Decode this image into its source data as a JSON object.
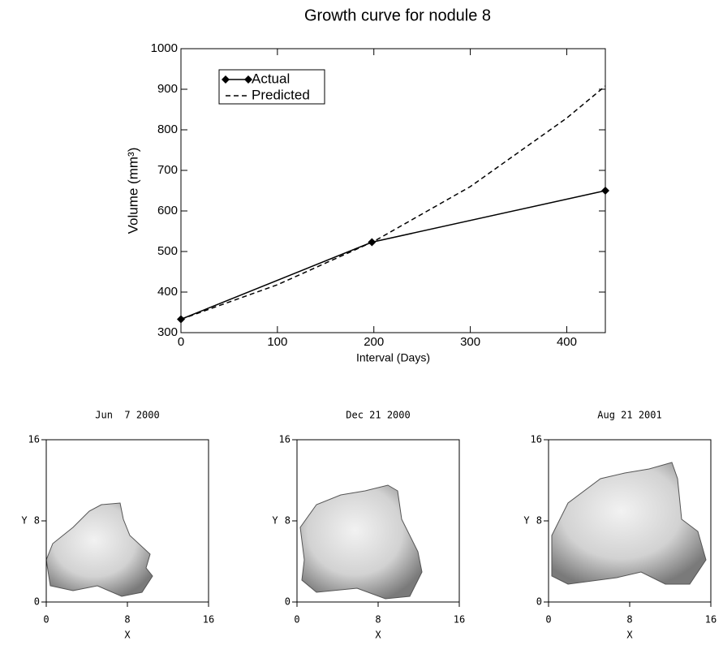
{
  "chart_data": [
    {
      "type": "line",
      "title": "Growth curve for nodule 8",
      "x_label": "Interval (Days)",
      "y_label": "Volume (mm³)",
      "xlim": [
        0,
        440
      ],
      "ylim": [
        300,
        1000
      ],
      "xticks": [
        0,
        100,
        200,
        300,
        400
      ],
      "yticks": [
        300,
        400,
        500,
        600,
        700,
        800,
        900,
        1000
      ],
      "legend": "upper left",
      "series": [
        {
          "name": "Actual",
          "color": "#000000",
          "line_style": "solid",
          "marker": "diamond",
          "x": [
            0,
            198,
            440
          ],
          "values": [
            333,
            523,
            650
          ]
        },
        {
          "name": "Predicted",
          "color": "#000000",
          "line_style": "dashed",
          "marker": "none",
          "x": [
            0,
            100,
            200,
            300,
            400,
            440
          ],
          "values": [
            333,
            418,
            525,
            660,
            829,
            908
          ]
        }
      ]
    },
    {
      "type": "surface-render",
      "title": "Jun  7 2000",
      "x_label": "X",
      "y_label": "Y",
      "xlim": [
        0,
        16
      ],
      "ylim": [
        0,
        16
      ],
      "xticks": [
        0,
        8,
        16
      ],
      "yticks": [
        0,
        8,
        16
      ]
    },
    {
      "type": "surface-render",
      "title": "Dec 21 2000",
      "x_label": "X",
      "y_label": "Y",
      "xlim": [
        0,
        16
      ],
      "ylim": [
        0,
        16
      ],
      "xticks": [
        0,
        8,
        16
      ],
      "yticks": [
        0,
        8,
        16
      ]
    },
    {
      "type": "surface-render",
      "title": "Aug 21 2001",
      "x_label": "X",
      "y_label": "Y",
      "xlim": [
        0,
        16
      ],
      "ylim": [
        0,
        16
      ],
      "xticks": [
        0,
        8,
        16
      ],
      "yticks": [
        0,
        8,
        16
      ]
    }
  ]
}
